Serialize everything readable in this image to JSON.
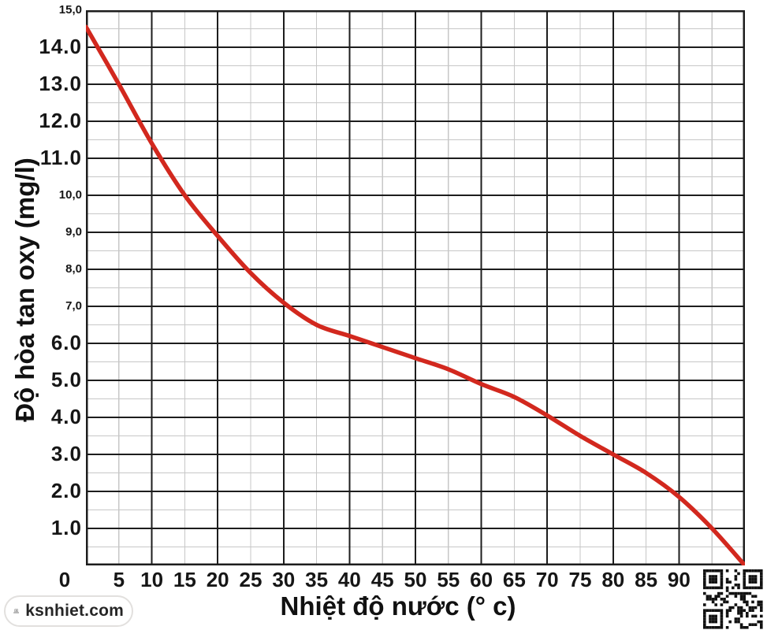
{
  "branding": {
    "site_label": "ksnhiet.com"
  },
  "chart_data": {
    "type": "line",
    "title": "",
    "xlabel": "Nhiệt độ nước (° c)",
    "ylabel": "Độ hòa tan oxy (mg/l)",
    "xlim": [
      0,
      100
    ],
    "ylim": [
      0,
      15
    ],
    "grid": {
      "on": true,
      "x_major_step": 10,
      "x_minor_step": 5,
      "y_major_step": 1.0,
      "y_minor_step": 0.5,
      "major_color": "#1d1d1d",
      "minor_color": "#c7c7c7"
    },
    "legend": "none",
    "x_tick_labels": [
      {
        "label": "0",
        "value": 0
      },
      {
        "label": "5",
        "value": 5
      },
      {
        "label": "10",
        "value": 10
      },
      {
        "label": "15",
        "value": 15
      },
      {
        "label": "20",
        "value": 20
      },
      {
        "label": "25",
        "value": 25
      },
      {
        "label": "30",
        "value": 30
      },
      {
        "label": "35",
        "value": 35
      },
      {
        "label": "40",
        "value": 40
      },
      {
        "label": "45",
        "value": 45
      },
      {
        "label": "50",
        "value": 50
      },
      {
        "label": "55",
        "value": 55
      },
      {
        "label": "60",
        "value": 60
      },
      {
        "label": "65",
        "value": 65
      },
      {
        "label": "70",
        "value": 70
      },
      {
        "label": "75",
        "value": 75
      },
      {
        "label": "80",
        "value": 80
      },
      {
        "label": "85",
        "value": 85
      },
      {
        "label": "90",
        "value": 90
      }
    ],
    "y_tick_labels": [
      {
        "label": "15,0",
        "value": 15,
        "size": "small"
      },
      {
        "label": "14.0",
        "value": 14,
        "size": "large"
      },
      {
        "label": "13.0",
        "value": 13,
        "size": "large"
      },
      {
        "label": "12.0",
        "value": 12,
        "size": "large"
      },
      {
        "label": "11.0",
        "value": 11,
        "size": "large"
      },
      {
        "label": "10,0",
        "value": 10,
        "size": "small"
      },
      {
        "label": "9,0",
        "value": 9,
        "size": "small"
      },
      {
        "label": "8,0",
        "value": 8,
        "size": "small"
      },
      {
        "label": "7,0",
        "value": 7,
        "size": "small"
      },
      {
        "label": "6.0",
        "value": 6,
        "size": "large"
      },
      {
        "label": "5.0",
        "value": 5,
        "size": "large"
      },
      {
        "label": "4.0",
        "value": 4,
        "size": "large"
      },
      {
        "label": "3.0",
        "value": 3,
        "size": "large"
      },
      {
        "label": "2.0",
        "value": 2,
        "size": "large"
      },
      {
        "label": "1.0",
        "value": 1,
        "size": "large"
      }
    ],
    "series": [
      {
        "name": "do-hoa-tan-oxy",
        "color": "#d2281e",
        "stroke_width": 5.5,
        "x": [
          0,
          5,
          10,
          15,
          20,
          25,
          30,
          35,
          40,
          45,
          50,
          55,
          60,
          65,
          70,
          75,
          80,
          85,
          90,
          95,
          100
        ],
        "y": [
          14.55,
          13.0,
          11.4,
          10.0,
          8.9,
          7.9,
          7.1,
          6.5,
          6.2,
          5.9,
          5.6,
          5.3,
          4.9,
          4.55,
          4.05,
          3.5,
          3.0,
          2.5,
          1.85,
          1.0,
          0.0
        ]
      }
    ]
  }
}
